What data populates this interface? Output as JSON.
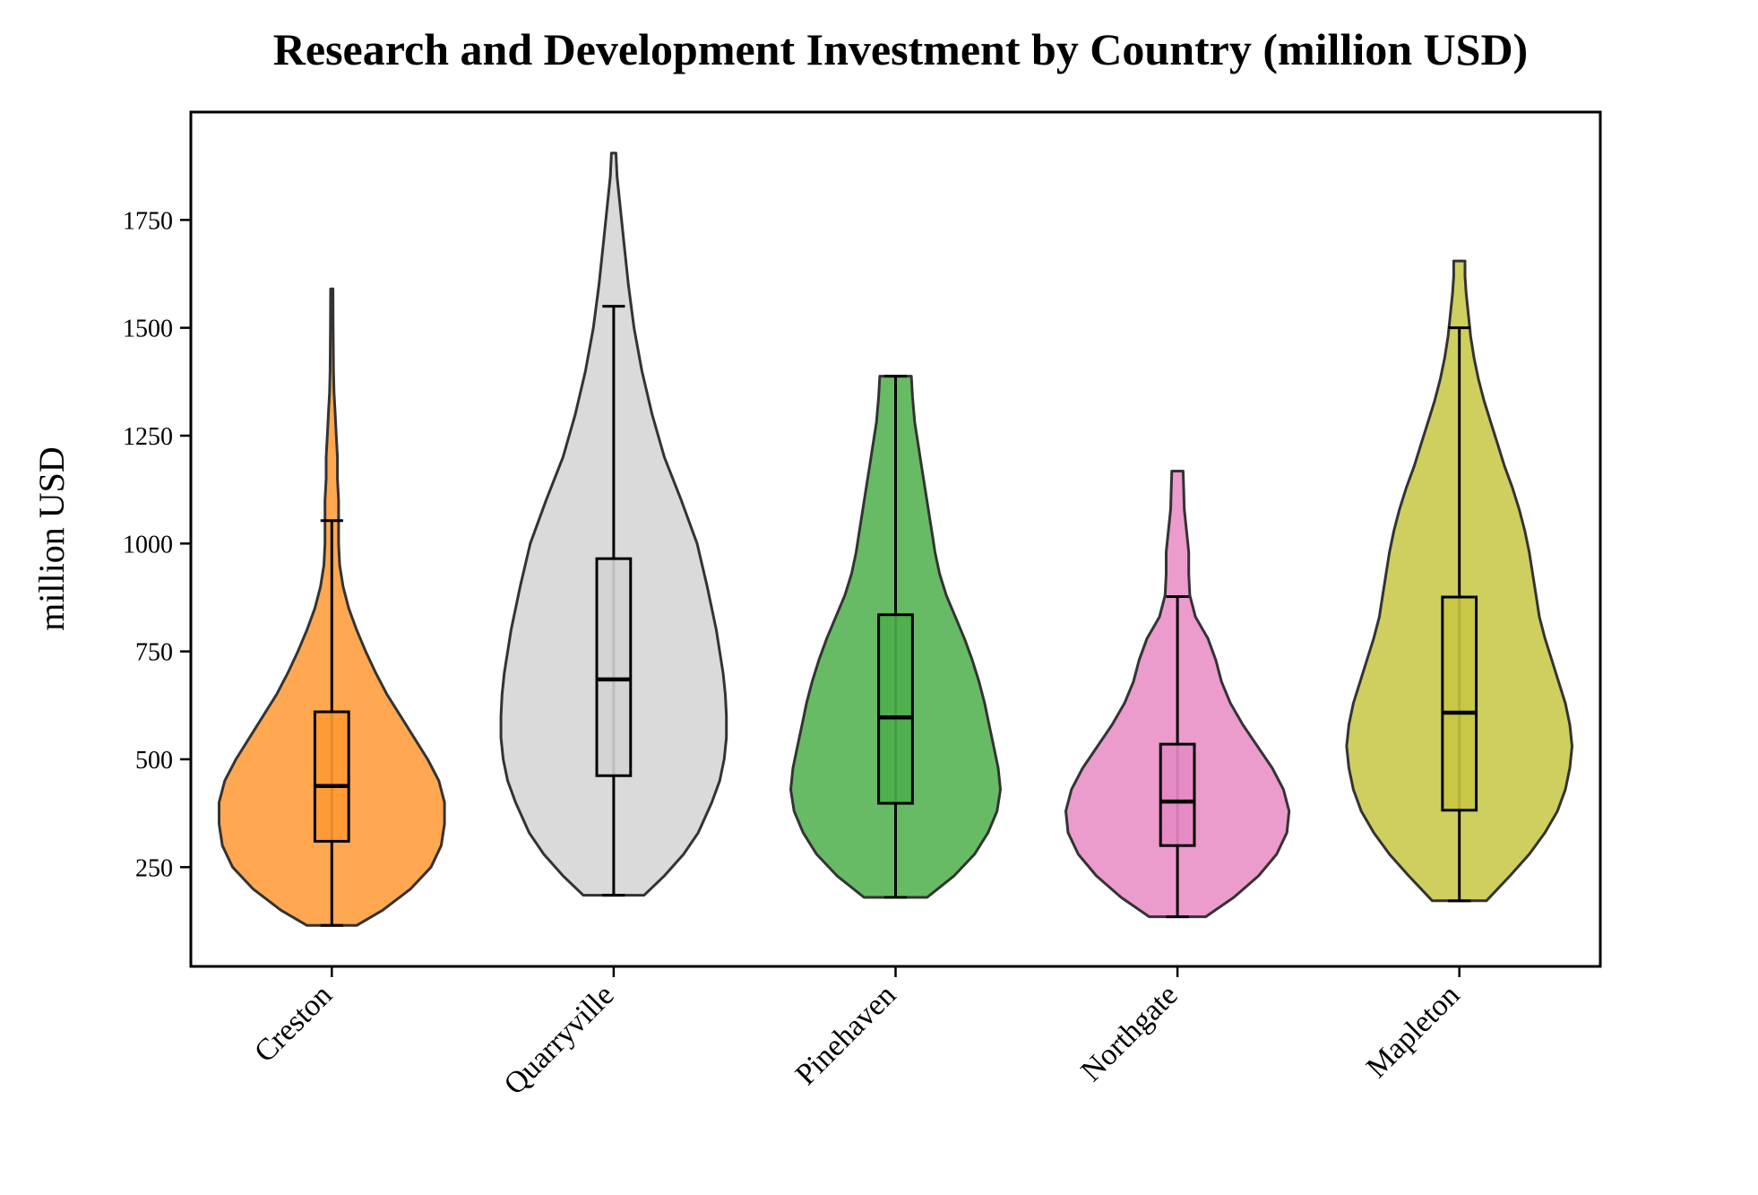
{
  "chart_data": {
    "type": "violin",
    "title": "Research and Development Investment by Country (million USD)",
    "ylabel": "million USD",
    "xlabel": "",
    "ylim": [
      20,
      2000
    ],
    "yticks": [
      250,
      500,
      750,
      1000,
      1250,
      1500,
      1750
    ],
    "grid": false,
    "categories": [
      "Creston",
      "Quarryville",
      "Pinehaven",
      "Northgate",
      "Mapleton"
    ],
    "series": [
      {
        "category": "Creston",
        "color": "#ff9933",
        "min": 115,
        "max": 1590,
        "box": {
          "whisker_low": 115,
          "q1": 310,
          "median": 438,
          "q3": 610,
          "whisker_high": 1053
        },
        "density": [
          [
            115,
            0.22
          ],
          [
            150,
            0.45
          ],
          [
            200,
            0.7
          ],
          [
            250,
            0.88
          ],
          [
            300,
            0.97
          ],
          [
            350,
            1.0
          ],
          [
            400,
            1.0
          ],
          [
            450,
            0.95
          ],
          [
            500,
            0.85
          ],
          [
            550,
            0.73
          ],
          [
            600,
            0.61
          ],
          [
            650,
            0.49
          ],
          [
            700,
            0.39
          ],
          [
            750,
            0.3
          ],
          [
            800,
            0.22
          ],
          [
            850,
            0.15
          ],
          [
            900,
            0.1
          ],
          [
            950,
            0.07
          ],
          [
            1000,
            0.06
          ],
          [
            1050,
            0.06
          ],
          [
            1100,
            0.06
          ],
          [
            1150,
            0.05
          ],
          [
            1200,
            0.05
          ],
          [
            1250,
            0.04
          ],
          [
            1300,
            0.03
          ],
          [
            1350,
            0.02
          ],
          [
            1400,
            0.015
          ],
          [
            1500,
            0.012
          ],
          [
            1590,
            0.01
          ]
        ]
      },
      {
        "category": "Quarryville",
        "color": "#d3d3d3",
        "min": 185,
        "max": 1905,
        "box": {
          "whisker_low": 185,
          "q1": 462,
          "median": 685,
          "q3": 965,
          "whisker_high": 1550
        },
        "density": [
          [
            185,
            0.27
          ],
          [
            230,
            0.45
          ],
          [
            280,
            0.62
          ],
          [
            330,
            0.75
          ],
          [
            400,
            0.87
          ],
          [
            450,
            0.94
          ],
          [
            500,
            0.98
          ],
          [
            550,
            1.0
          ],
          [
            600,
            1.0
          ],
          [
            650,
            0.99
          ],
          [
            700,
            0.97
          ],
          [
            800,
            0.91
          ],
          [
            900,
            0.83
          ],
          [
            1000,
            0.74
          ],
          [
            1100,
            0.6
          ],
          [
            1200,
            0.45
          ],
          [
            1300,
            0.34
          ],
          [
            1400,
            0.25
          ],
          [
            1500,
            0.18
          ],
          [
            1600,
            0.13
          ],
          [
            1700,
            0.09
          ],
          [
            1750,
            0.07
          ],
          [
            1800,
            0.05
          ],
          [
            1850,
            0.03
          ],
          [
            1905,
            0.02
          ]
        ]
      },
      {
        "category": "Pinehaven",
        "color": "#4daf4a",
        "min": 180,
        "max": 1388,
        "box": {
          "whisker_low": 180,
          "q1": 398,
          "median": 597,
          "q3": 835,
          "whisker_high": 1388
        },
        "density": [
          [
            180,
            0.28
          ],
          [
            230,
            0.52
          ],
          [
            280,
            0.7
          ],
          [
            330,
            0.82
          ],
          [
            380,
            0.9
          ],
          [
            430,
            0.93
          ],
          [
            480,
            0.91
          ],
          [
            530,
            0.87
          ],
          [
            580,
            0.83
          ],
          [
            630,
            0.79
          ],
          [
            680,
            0.74
          ],
          [
            730,
            0.68
          ],
          [
            780,
            0.61
          ],
          [
            830,
            0.53
          ],
          [
            880,
            0.45
          ],
          [
            930,
            0.39
          ],
          [
            980,
            0.35
          ],
          [
            1030,
            0.32
          ],
          [
            1080,
            0.29
          ],
          [
            1130,
            0.26
          ],
          [
            1180,
            0.23
          ],
          [
            1230,
            0.2
          ],
          [
            1280,
            0.17
          ],
          [
            1340,
            0.15
          ],
          [
            1388,
            0.14
          ]
        ]
      },
      {
        "category": "Northgate",
        "color": "#e78ac3",
        "min": 135,
        "max": 1168,
        "box": {
          "whisker_low": 135,
          "q1": 300,
          "median": 402,
          "q3": 535,
          "whisker_high": 877
        },
        "density": [
          [
            135,
            0.25
          ],
          [
            180,
            0.5
          ],
          [
            230,
            0.72
          ],
          [
            280,
            0.88
          ],
          [
            330,
            0.97
          ],
          [
            380,
            0.99
          ],
          [
            430,
            0.94
          ],
          [
            480,
            0.84
          ],
          [
            530,
            0.71
          ],
          [
            580,
            0.58
          ],
          [
            630,
            0.47
          ],
          [
            680,
            0.39
          ],
          [
            730,
            0.34
          ],
          [
            780,
            0.27
          ],
          [
            830,
            0.16
          ],
          [
            880,
            0.11
          ],
          [
            930,
            0.1
          ],
          [
            980,
            0.1
          ],
          [
            1030,
            0.08
          ],
          [
            1080,
            0.06
          ],
          [
            1130,
            0.055
          ],
          [
            1168,
            0.05
          ]
        ]
      },
      {
        "category": "Mapleton",
        "color": "#c7c744",
        "min": 172,
        "max": 1655,
        "box": {
          "whisker_low": 172,
          "q1": 382,
          "median": 608,
          "q3": 876,
          "whisker_high": 1500
        },
        "density": [
          [
            172,
            0.24
          ],
          [
            230,
            0.45
          ],
          [
            280,
            0.62
          ],
          [
            330,
            0.76
          ],
          [
            380,
            0.87
          ],
          [
            430,
            0.94
          ],
          [
            480,
            0.98
          ],
          [
            530,
            1.0
          ],
          [
            580,
            0.98
          ],
          [
            630,
            0.94
          ],
          [
            680,
            0.88
          ],
          [
            730,
            0.82
          ],
          [
            780,
            0.76
          ],
          [
            830,
            0.71
          ],
          [
            880,
            0.68
          ],
          [
            930,
            0.65
          ],
          [
            980,
            0.62
          ],
          [
            1030,
            0.58
          ],
          [
            1080,
            0.53
          ],
          [
            1130,
            0.47
          ],
          [
            1180,
            0.4
          ],
          [
            1230,
            0.34
          ],
          [
            1280,
            0.28
          ],
          [
            1330,
            0.22
          ],
          [
            1380,
            0.17
          ],
          [
            1430,
            0.13
          ],
          [
            1480,
            0.1
          ],
          [
            1530,
            0.08
          ],
          [
            1580,
            0.06
          ],
          [
            1620,
            0.05
          ],
          [
            1655,
            0.05
          ]
        ]
      }
    ]
  }
}
